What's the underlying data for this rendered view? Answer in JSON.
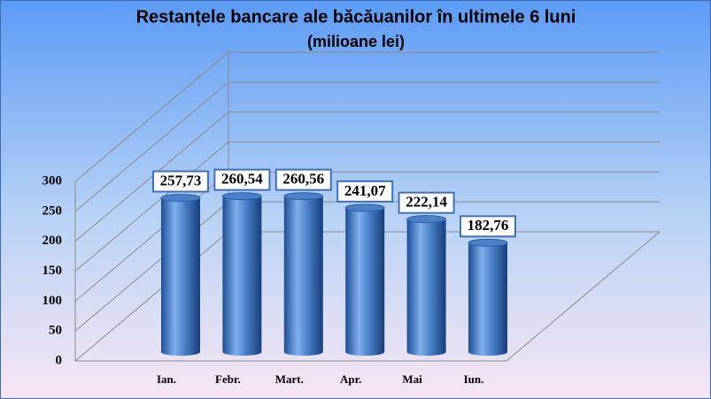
{
  "chart_data": {
    "type": "bar",
    "title": "Restanțele bancare ale băcăuanilor în ultimele 6 luni",
    "subtitle": "(milioane lei)",
    "categories": [
      "Ian.",
      "Febr.",
      "Mart.",
      "Apr.",
      "Mai",
      "Iun."
    ],
    "values": [
      257.73,
      260.54,
      260.56,
      241.07,
      222.14,
      182.76
    ],
    "value_labels": [
      "257,73",
      "260,54",
      "260,56",
      "241,07",
      "222,14",
      "182,76"
    ],
    "color": "#4a80c8",
    "ylim": [
      0,
      300
    ],
    "yticks": [
      0,
      50,
      100,
      150,
      200,
      250,
      300
    ],
    "grid": true
  }
}
